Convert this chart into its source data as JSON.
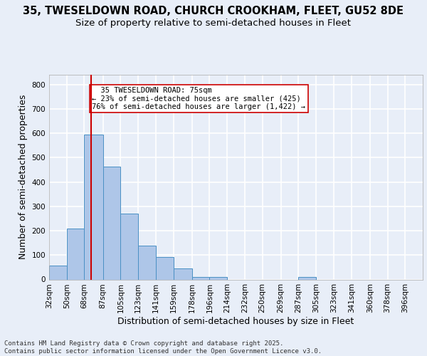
{
  "title_line1": "35, TWESELDOWN ROAD, CHURCH CROOKHAM, FLEET, GU52 8DE",
  "title_line2": "Size of property relative to semi-detached houses in Fleet",
  "xlabel": "Distribution of semi-detached houses by size in Fleet",
  "ylabel": "Number of semi-detached properties",
  "footer": "Contains HM Land Registry data © Crown copyright and database right 2025.\nContains public sector information licensed under the Open Government Licence v3.0.",
  "bin_labels": [
    "32sqm",
    "50sqm",
    "68sqm",
    "87sqm",
    "105sqm",
    "123sqm",
    "141sqm",
    "159sqm",
    "178sqm",
    "196sqm",
    "214sqm",
    "232sqm",
    "250sqm",
    "269sqm",
    "287sqm",
    "305sqm",
    "323sqm",
    "341sqm",
    "360sqm",
    "378sqm",
    "396sqm"
  ],
  "bin_edges": [
    32,
    50,
    68,
    87,
    105,
    123,
    141,
    159,
    178,
    196,
    214,
    232,
    250,
    269,
    287,
    305,
    323,
    341,
    360,
    378,
    396
  ],
  "bar_heights": [
    57,
    209,
    595,
    464,
    271,
    139,
    91,
    44,
    10,
    10,
    0,
    0,
    0,
    0,
    9,
    0,
    0,
    0,
    0,
    0,
    0
  ],
  "bar_color": "#aec6e8",
  "bar_edge_color": "#4a90c4",
  "property_size": 75,
  "property_line_color": "#cc0000",
  "annotation_text": "  35 TWESELDOWN ROAD: 75sqm\n← 23% of semi-detached houses are smaller (425)\n76% of semi-detached houses are larger (1,422) →",
  "annotation_box_color": "#ffffff",
  "annotation_box_edge": "#cc0000",
  "ylim": [
    0,
    840
  ],
  "yticks": [
    0,
    100,
    200,
    300,
    400,
    500,
    600,
    700,
    800
  ],
  "background_color": "#e8eef8",
  "plot_background": "#e8eef8",
  "grid_color": "#ffffff",
  "title_fontsize": 10.5,
  "subtitle_fontsize": 9.5,
  "axis_label_fontsize": 9,
  "tick_fontsize": 7.5,
  "footer_fontsize": 6.5,
  "annotation_fontsize": 7.5
}
